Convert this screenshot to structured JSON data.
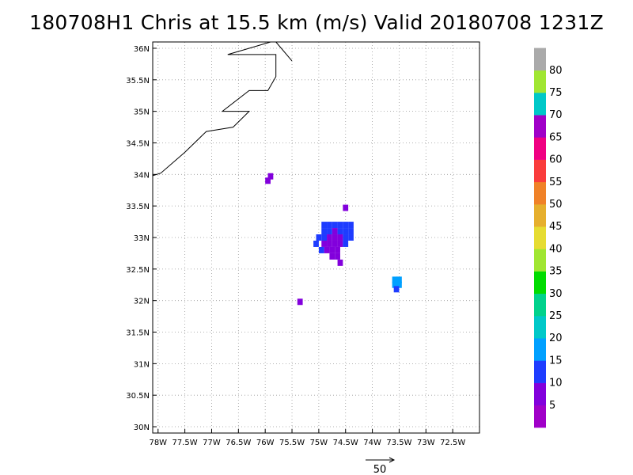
{
  "chart_data": {
    "type": "heatmap",
    "title": "180708H1 Chris at 15.5 km (m/s) Valid 20180708 1231Z",
    "xlabel": "",
    "ylabel": "",
    "xlim": [
      -78.1,
      -72.0
    ],
    "ylim": [
      29.9,
      36.1
    ],
    "grid": true,
    "x_ticks": [
      -78,
      -77.5,
      -77,
      -76.5,
      -76,
      -75.5,
      -75,
      -74.5,
      -74,
      -73.5,
      -73,
      -72.5
    ],
    "x_tick_labels": [
      "78W",
      "77.5W",
      "77W",
      "76.5W",
      "76W",
      "75.5W",
      "75W",
      "74.5W",
      "74W",
      "73.5W",
      "73W",
      "72.5W"
    ],
    "y_ticks": [
      30,
      30.5,
      31,
      31.5,
      32,
      32.5,
      33,
      33.5,
      34,
      34.5,
      35,
      35.5,
      36
    ],
    "y_tick_labels": [
      "30N",
      "30.5N",
      "31N",
      "31.5N",
      "32N",
      "32.5N",
      "33N",
      "33.5N",
      "34N",
      "34.5N",
      "35N",
      "35.5N",
      "36N"
    ],
    "colorbar": {
      "labels": [
        "5",
        "10",
        "15",
        "20",
        "25",
        "30",
        "35",
        "40",
        "45",
        "50",
        "55",
        "60",
        "65",
        "70",
        "75",
        "80"
      ],
      "colors": [
        "#a000c8",
        "#8200dc",
        "#1e3cff",
        "#00a0ff",
        "#00c8c8",
        "#00d28c",
        "#00dc00",
        "#a0e632",
        "#e6dc32",
        "#e6af2d",
        "#f08228",
        "#fa3c3c",
        "#f00082",
        "#a000c8",
        "#00c8c8",
        "#a0e632",
        "#aaaaaa"
      ]
    },
    "coastline": [
      [
        -78.1,
        33.98
      ],
      [
        -77.95,
        34.02
      ],
      [
        -77.5,
        34.35
      ],
      [
        -77.1,
        34.68
      ],
      [
        -76.6,
        34.75
      ],
      [
        -76.3,
        35.0
      ],
      [
        -76.8,
        35.0
      ],
      [
        -76.3,
        35.33
      ],
      [
        -75.95,
        35.33
      ],
      [
        -75.8,
        35.55
      ],
      [
        -75.8,
        35.9
      ],
      [
        -76.7,
        35.9
      ],
      [
        -76.3,
        36.0
      ],
      [
        -75.9,
        36.1
      ]
    ],
    "coastline2": [
      [
        -75.8,
        36.1
      ],
      [
        -75.5,
        35.8
      ]
    ],
    "cells": [
      {
        "lon": -75.95,
        "lat": 33.9,
        "v": 7
      },
      {
        "lon": -75.9,
        "lat": 33.97,
        "v": 7
      },
      {
        "lon": -74.5,
        "lat": 33.47,
        "v": 7
      },
      {
        "lon": -75.35,
        "lat": 31.98,
        "v": 8
      },
      {
        "lon": -74.9,
        "lat": 33.2,
        "v": 13
      },
      {
        "lon": -74.8,
        "lat": 33.2,
        "v": 13
      },
      {
        "lon": -74.7,
        "lat": 33.2,
        "v": 12
      },
      {
        "lon": -74.6,
        "lat": 33.2,
        "v": 13
      },
      {
        "lon": -74.5,
        "lat": 33.2,
        "v": 12
      },
      {
        "lon": -74.4,
        "lat": 33.2,
        "v": 13
      },
      {
        "lon": -74.9,
        "lat": 33.1,
        "v": 12
      },
      {
        "lon": -74.8,
        "lat": 33.1,
        "v": 11
      },
      {
        "lon": -74.7,
        "lat": 33.1,
        "v": 9
      },
      {
        "lon": -74.6,
        "lat": 33.1,
        "v": 11
      },
      {
        "lon": -74.5,
        "lat": 33.1,
        "v": 12
      },
      {
        "lon": -74.4,
        "lat": 33.1,
        "v": 13
      },
      {
        "lon": -75.0,
        "lat": 33.0,
        "v": 12
      },
      {
        "lon": -74.9,
        "lat": 33.0,
        "v": 11
      },
      {
        "lon": -74.8,
        "lat": 33.0,
        "v": 9
      },
      {
        "lon": -74.7,
        "lat": 33.0,
        "v": 8
      },
      {
        "lon": -74.6,
        "lat": 33.0,
        "v": 9
      },
      {
        "lon": -74.5,
        "lat": 33.0,
        "v": 11
      },
      {
        "lon": -74.4,
        "lat": 33.0,
        "v": 12
      },
      {
        "lon": -75.05,
        "lat": 32.9,
        "v": 12
      },
      {
        "lon": -74.9,
        "lat": 32.9,
        "v": 9
      },
      {
        "lon": -74.8,
        "lat": 32.9,
        "v": 8
      },
      {
        "lon": -74.7,
        "lat": 32.9,
        "v": 8
      },
      {
        "lon": -74.6,
        "lat": 32.9,
        "v": 9
      },
      {
        "lon": -74.5,
        "lat": 32.9,
        "v": 12
      },
      {
        "lon": -74.95,
        "lat": 32.8,
        "v": 12
      },
      {
        "lon": -74.85,
        "lat": 32.8,
        "v": 9
      },
      {
        "lon": -74.75,
        "lat": 32.8,
        "v": 8
      },
      {
        "lon": -74.65,
        "lat": 32.8,
        "v": 9
      },
      {
        "lon": -74.75,
        "lat": 32.7,
        "v": 8
      },
      {
        "lon": -74.65,
        "lat": 32.7,
        "v": 8
      },
      {
        "lon": -74.6,
        "lat": 32.6,
        "v": 7
      },
      {
        "lon": -73.58,
        "lat": 32.33,
        "v": 18
      },
      {
        "lon": -73.5,
        "lat": 32.33,
        "v": 18
      },
      {
        "lon": -73.58,
        "lat": 32.25,
        "v": 17
      },
      {
        "lon": -73.5,
        "lat": 32.25,
        "v": 18
      },
      {
        "lon": -73.55,
        "lat": 32.18,
        "v": 13
      }
    ],
    "reference_vector_label": "50"
  }
}
